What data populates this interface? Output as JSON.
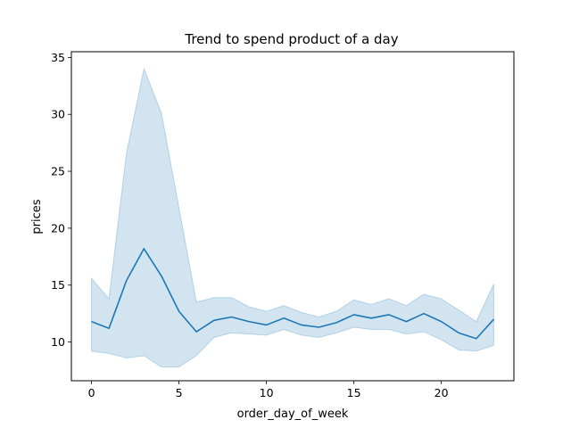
{
  "chart_data": {
    "type": "line",
    "title": "Trend to spend product of a day",
    "xlabel": "order_day_of_week",
    "ylabel": "prices",
    "xlim": [
      -1.15,
      24.15
    ],
    "ylim": [
      6.6,
      35.5
    ],
    "xticks": [
      0,
      5,
      10,
      15,
      20
    ],
    "yticks": [
      10,
      15,
      20,
      25,
      30,
      35
    ],
    "grid": false,
    "colors": {
      "line": "#1f77b4",
      "band": "#1f77b4"
    },
    "series": [
      {
        "x": [
          0,
          1,
          2,
          3,
          4,
          5,
          6,
          7,
          8,
          9,
          10,
          11,
          12,
          13,
          14,
          15,
          16,
          17,
          18,
          19,
          20,
          21,
          22,
          23
        ],
        "y": [
          11.8,
          11.2,
          15.4,
          18.2,
          15.8,
          12.7,
          10.9,
          11.9,
          12.2,
          11.8,
          11.5,
          12.1,
          11.5,
          11.3,
          11.7,
          12.4,
          12.1,
          12.4,
          11.8,
          12.5,
          11.8,
          10.8,
          10.3,
          12.0
        ],
        "lower": [
          9.2,
          9.0,
          8.6,
          8.8,
          7.8,
          7.8,
          8.8,
          10.4,
          10.8,
          10.7,
          10.6,
          11.1,
          10.6,
          10.4,
          10.8,
          11.3,
          11.1,
          11.1,
          10.7,
          10.9,
          10.2,
          9.3,
          9.2,
          9.7
        ],
        "upper": [
          15.6,
          13.8,
          26.6,
          34.0,
          30.1,
          21.8,
          13.5,
          13.9,
          13.9,
          13.1,
          12.7,
          13.2,
          12.6,
          12.2,
          12.7,
          13.7,
          13.3,
          13.8,
          13.2,
          14.2,
          13.8,
          12.8,
          11.8,
          15.1
        ]
      }
    ]
  }
}
